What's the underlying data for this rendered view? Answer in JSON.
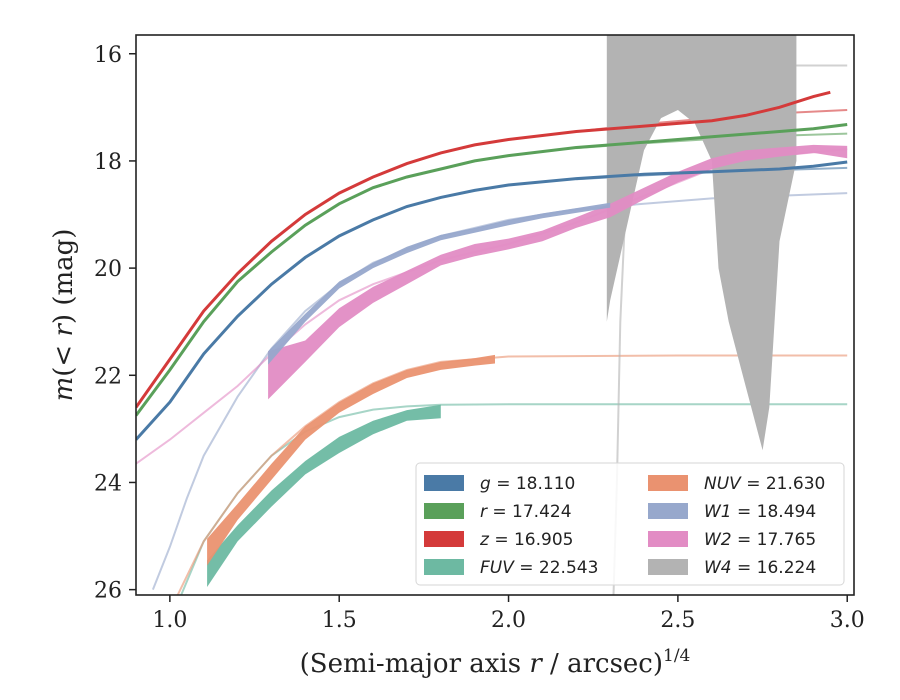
{
  "chart_data": {
    "type": "line",
    "title": "",
    "xlabel_text": "(Semi-major axis ",
    "xlabel_var": "r",
    "xlabel_tail": " / arcsec)",
    "xlabel_sup": "1/4",
    "ylabel_pre": "m(< ",
    "ylabel_var": "r",
    "ylabel_post": ") (mag)",
    "xlim": [
      0.9,
      3.02
    ],
    "ylim": [
      26.1,
      15.65
    ],
    "y_inverted": true,
    "xticks": [
      1.0,
      1.5,
      2.0,
      2.5,
      3.0
    ],
    "xtick_labels": [
      "1.0",
      "1.5",
      "2.0",
      "2.5",
      "3.0"
    ],
    "yticks": [
      16,
      18,
      20,
      22,
      24,
      26
    ],
    "ytick_labels": [
      "16",
      "18",
      "20",
      "22",
      "24",
      "26"
    ],
    "grid": false,
    "legend_position": "lower-right",
    "series": [
      {
        "band": "g",
        "label": "= 18.110",
        "color": "#4a7aa6",
        "kind": "line",
        "x": [
          0.9,
          1.0,
          1.1,
          1.2,
          1.3,
          1.4,
          1.5,
          1.6,
          1.7,
          1.8,
          1.9,
          2.0,
          2.2,
          2.4,
          2.6,
          2.8,
          2.9,
          3.0
        ],
        "y": [
          23.2,
          22.5,
          21.6,
          20.9,
          20.3,
          19.8,
          19.4,
          19.1,
          18.85,
          18.68,
          18.55,
          18.45,
          18.33,
          18.25,
          18.2,
          18.15,
          18.1,
          18.02
        ],
        "model_x": [
          2.2,
          2.4,
          2.6,
          2.8,
          3.0
        ],
        "model_y": [
          18.34,
          18.27,
          18.21,
          18.17,
          18.13
        ]
      },
      {
        "band": "r",
        "label": "= 17.424",
        "color": "#5aa05a",
        "kind": "line",
        "x": [
          0.9,
          1.0,
          1.1,
          1.2,
          1.3,
          1.4,
          1.5,
          1.6,
          1.7,
          1.8,
          1.9,
          2.0,
          2.2,
          2.4,
          2.6,
          2.8,
          2.9,
          3.0
        ],
        "y": [
          22.75,
          21.9,
          21.0,
          20.25,
          19.7,
          19.2,
          18.8,
          18.5,
          18.3,
          18.15,
          18.0,
          17.9,
          17.75,
          17.65,
          17.55,
          17.45,
          17.4,
          17.32
        ],
        "model_x": [
          2.2,
          2.4,
          2.6,
          2.8,
          3.0
        ],
        "model_y": [
          17.76,
          17.67,
          17.59,
          17.53,
          17.49
        ]
      },
      {
        "band": "z",
        "label": "= 16.905",
        "color": "#d43a3a",
        "kind": "line",
        "x": [
          0.9,
          1.0,
          1.1,
          1.2,
          1.3,
          1.4,
          1.5,
          1.6,
          1.7,
          1.8,
          1.9,
          2.0,
          2.2,
          2.4,
          2.5,
          2.6,
          2.7,
          2.8,
          2.9,
          2.95
        ],
        "y": [
          22.6,
          21.7,
          20.8,
          20.1,
          19.5,
          19.0,
          18.6,
          18.3,
          18.05,
          17.85,
          17.7,
          17.6,
          17.45,
          17.35,
          17.3,
          17.25,
          17.15,
          17.0,
          16.8,
          16.72
        ],
        "model_x": [
          2.2,
          2.4,
          2.6,
          2.8,
          3.0
        ],
        "model_y": [
          17.45,
          17.31,
          17.2,
          17.11,
          17.05
        ]
      },
      {
        "band": "FUV",
        "label": "= 22.543",
        "color": "#6db9a2",
        "kind": "band",
        "x": [
          1.11,
          1.2,
          1.3,
          1.4,
          1.5,
          1.6,
          1.7,
          1.8
        ],
        "y_low": [
          25.45,
          24.8,
          24.15,
          23.6,
          23.15,
          22.85,
          22.65,
          22.55
        ],
        "y_high": [
          25.95,
          25.1,
          24.45,
          23.85,
          23.45,
          23.1,
          22.85,
          22.8
        ],
        "model_x": [
          0.9,
          1.0,
          1.1,
          1.2,
          1.3,
          1.4,
          1.5,
          1.6,
          1.7,
          1.8,
          2.0,
          2.5,
          3.0
        ],
        "model_y": [
          28.0,
          26.6,
          25.1,
          24.2,
          23.5,
          23.05,
          22.78,
          22.64,
          22.58,
          22.55,
          22.54,
          22.54,
          22.54
        ]
      },
      {
        "band": "NUV",
        "label": "= 21.630",
        "color": "#ea9270",
        "kind": "band",
        "x": [
          1.11,
          1.2,
          1.3,
          1.4,
          1.5,
          1.6,
          1.7,
          1.8,
          1.9,
          1.96
        ],
        "y_low": [
          25.05,
          24.4,
          23.65,
          22.95,
          22.5,
          22.15,
          21.9,
          21.75,
          21.68,
          21.62
        ],
        "y_high": [
          25.55,
          24.7,
          23.95,
          23.2,
          22.7,
          22.35,
          22.05,
          21.9,
          21.82,
          21.78
        ],
        "model_x": [
          0.9,
          1.0,
          1.1,
          1.2,
          1.3,
          1.4,
          1.5,
          1.6,
          1.7,
          1.8,
          2.0,
          2.5,
          3.0
        ],
        "model_y": [
          27.5,
          26.4,
          25.1,
          24.2,
          23.5,
          22.95,
          22.5,
          22.15,
          21.9,
          21.75,
          21.65,
          21.63,
          21.63
        ]
      },
      {
        "band": "W1",
        "label": "= 18.494",
        "color": "#97a8cc",
        "kind": "band",
        "x": [
          1.29,
          1.4,
          1.5,
          1.6,
          1.7,
          1.8,
          1.9,
          2.0,
          2.1,
          2.2,
          2.3
        ],
        "y_low": [
          21.55,
          20.85,
          20.25,
          19.9,
          19.6,
          19.38,
          19.25,
          19.1,
          18.98,
          18.88,
          18.78
        ],
        "y_high": [
          21.8,
          21.0,
          20.38,
          20.0,
          19.72,
          19.48,
          19.34,
          19.2,
          19.07,
          18.97,
          18.87
        ],
        "model_x": [
          0.95,
          1.0,
          1.05,
          1.1,
          1.2,
          1.3,
          1.4,
          1.5,
          1.6,
          1.8,
          2.0,
          2.2,
          2.4,
          2.6,
          2.8,
          3.0
        ],
        "model_y": [
          26.0,
          25.2,
          24.3,
          23.5,
          22.4,
          21.5,
          20.8,
          20.3,
          19.9,
          19.4,
          19.1,
          18.9,
          18.8,
          18.7,
          18.65,
          18.6
        ]
      },
      {
        "band": "W2",
        "label": "= 17.765",
        "color": "#e28cc4",
        "kind": "band",
        "x": [
          1.29,
          1.4,
          1.5,
          1.6,
          1.7,
          1.8,
          1.9,
          2.0,
          2.1,
          2.2,
          2.3,
          2.4,
          2.5,
          2.6,
          2.7,
          2.8,
          2.9,
          3.0
        ],
        "y_low": [
          21.55,
          21.35,
          20.75,
          20.35,
          20.05,
          19.75,
          19.55,
          19.45,
          19.3,
          19.05,
          18.8,
          18.5,
          18.2,
          17.95,
          17.8,
          17.75,
          17.7,
          17.72
        ],
        "y_high": [
          22.45,
          21.75,
          21.1,
          20.65,
          20.3,
          19.95,
          19.78,
          19.65,
          19.5,
          19.25,
          19.05,
          18.72,
          18.4,
          18.15,
          18.0,
          17.92,
          17.85,
          17.95
        ],
        "model_x": [
          0.9,
          1.0,
          1.1,
          1.2,
          1.3,
          1.4,
          1.5,
          1.6,
          1.8,
          2.0,
          2.2,
          2.4,
          2.6,
          2.8,
          3.0
        ],
        "model_y": [
          23.65,
          23.2,
          22.7,
          22.2,
          21.6,
          21.05,
          20.6,
          20.3,
          19.85,
          19.55,
          19.15,
          18.65,
          18.15,
          17.9,
          17.78
        ]
      },
      {
        "band": "W4",
        "label": "= 16.224",
        "color": "#b3b3b3",
        "kind": "band",
        "x": [
          2.29,
          2.3,
          2.35,
          2.4,
          2.45,
          2.5,
          2.55,
          2.6,
          2.62,
          2.65,
          2.7,
          2.75,
          2.77,
          2.8,
          2.85
        ],
        "y_low": [
          15.65,
          15.65,
          15.65,
          15.65,
          15.65,
          15.65,
          15.65,
          15.65,
          15.65,
          15.65,
          15.65,
          15.65,
          15.65,
          15.65,
          15.65
        ],
        "y_high": [
          21.0,
          20.6,
          19.2,
          17.8,
          17.2,
          17.05,
          17.3,
          18.0,
          20.0,
          21.0,
          22.2,
          23.4,
          22.6,
          19.5,
          18.0
        ],
        "model_x": [
          2.31,
          2.32,
          2.33,
          2.35,
          2.4,
          2.45,
          2.5,
          2.55,
          2.6,
          2.7,
          2.8,
          2.9,
          3.0
        ],
        "model_y": [
          26.1,
          24.0,
          21.0,
          18.2,
          16.7,
          16.35,
          16.25,
          16.23,
          16.22,
          16.22,
          16.22,
          16.22,
          16.22
        ]
      }
    ],
    "legend": {
      "left_column": [
        {
          "band": "g",
          "text": "= 18.110",
          "color": "#4a7aa6"
        },
        {
          "band": "r",
          "text": "= 17.424",
          "color": "#5aa05a"
        },
        {
          "band": "z",
          "text": "= 16.905",
          "color": "#d43a3a"
        },
        {
          "band": "FUV",
          "text": "= 22.543",
          "color": "#6db9a2"
        }
      ],
      "right_column": [
        {
          "band": "NUV",
          "text": "= 21.630",
          "color": "#ea9270"
        },
        {
          "band": "W1",
          "text": "= 18.494",
          "color": "#97a8cc"
        },
        {
          "band": "W2",
          "text": "= 17.765",
          "color": "#e28cc4"
        },
        {
          "band": "W4",
          "text": "= 16.224",
          "color": "#b3b3b3"
        }
      ]
    }
  }
}
